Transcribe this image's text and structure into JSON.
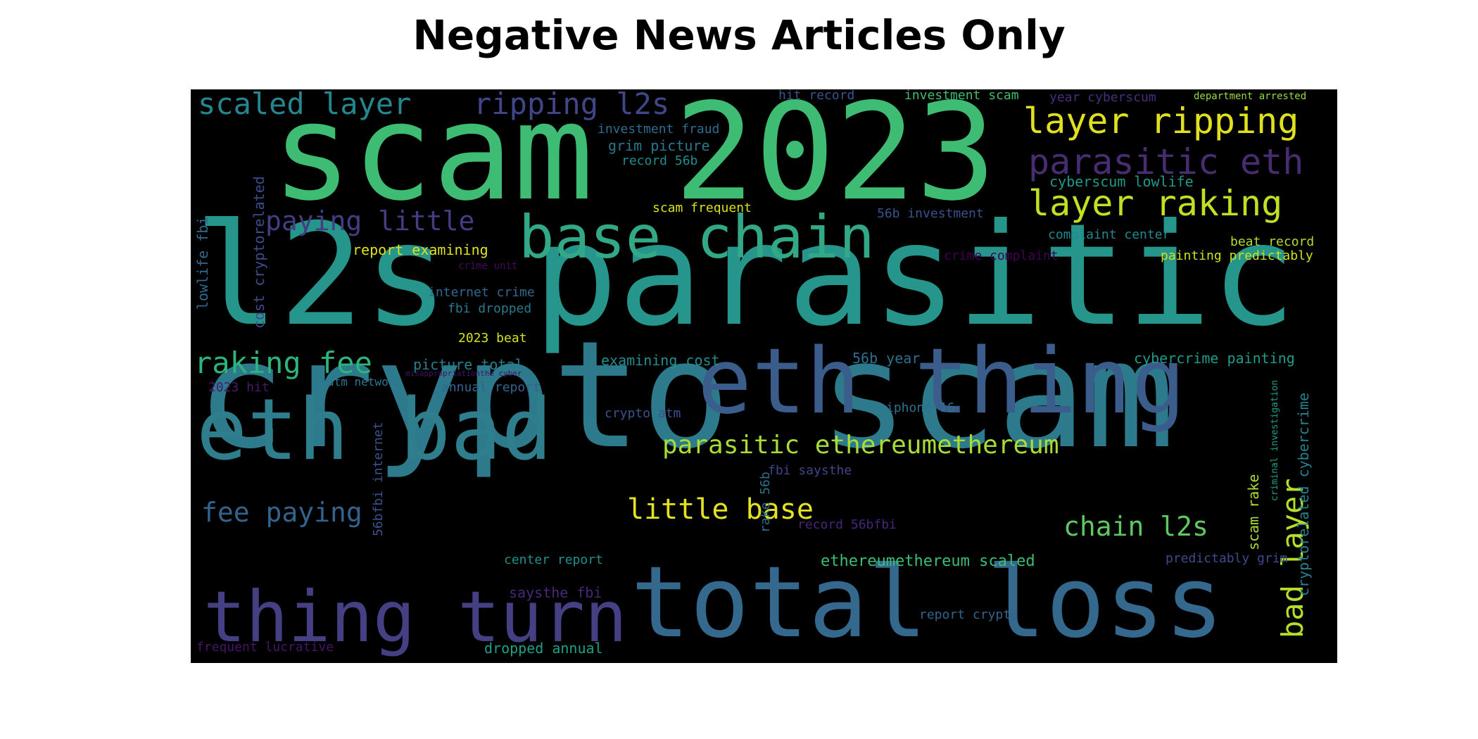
{
  "title": "Negative News Articles Only",
  "words": [
    {
      "text": "crypto scam",
      "color": "#2d7a8c"
    },
    {
      "text": "l2s parasitic",
      "color": "#26958b"
    },
    {
      "text": "scam 2023",
      "color": "#3fbc74"
    },
    {
      "text": "eth thing",
      "color": "#3a5d8c"
    },
    {
      "text": "total loss",
      "color": "#35688d"
    },
    {
      "text": "eth bad",
      "color": "#2e7e8e"
    },
    {
      "text": "thing turn",
      "color": "#453f84"
    },
    {
      "text": "base chain",
      "color": "#32a887"
    },
    {
      "text": "layer ripping",
      "color": "#e0e021"
    },
    {
      "text": "parasitic eth",
      "color": "#482c72"
    },
    {
      "text": "layer raking",
      "color": "#c2df23"
    },
    {
      "text": "bad layer",
      "color": "#b5de2b"
    },
    {
      "text": "scaled layer",
      "color": "#24868e"
    },
    {
      "text": "ripping l2s",
      "color": "#404688"
    },
    {
      "text": "paying little",
      "color": "#433d84"
    },
    {
      "text": "raking fee",
      "color": "#2db37c"
    },
    {
      "text": "parasitic ethereumethereum",
      "color": "#a8db34"
    },
    {
      "text": "little base",
      "color": "#e3e31f"
    },
    {
      "text": "fee paying",
      "color": "#33628d"
    },
    {
      "text": "chain l2s",
      "color": "#5ec862"
    },
    {
      "text": "scam frequent",
      "color": "#d5e21a"
    },
    {
      "text": "grim picture",
      "color": "#2a788e"
    },
    {
      "text": "record 56b",
      "color": "#218e8d"
    },
    {
      "text": "investment fraud",
      "color": "#2f6c8e"
    },
    {
      "text": "hit record",
      "color": "#3a538b"
    },
    {
      "text": "investment scam",
      "color": "#40bd72"
    },
    {
      "text": "year cyberscum",
      "color": "#472f7d"
    },
    {
      "text": "department arrested",
      "color": "#95d840"
    },
    {
      "text": "cyberscum lowlife",
      "color": "#1f9a8a"
    },
    {
      "text": "56b investment",
      "color": "#3b518b"
    },
    {
      "text": "complaint center",
      "color": "#23898e"
    },
    {
      "text": "beat record",
      "color": "#b2dd2c"
    },
    {
      "text": "crime complaint",
      "color": "#440154"
    },
    {
      "text": "painting predictably",
      "color": "#cde11d"
    },
    {
      "text": "report examining",
      "color": "#dde318"
    },
    {
      "text": "crime unit",
      "color": "#46075a"
    },
    {
      "text": "internet crime",
      "color": "#31678e"
    },
    {
      "text": "fbi dropped",
      "color": "#29798e"
    },
    {
      "text": "2023 beat",
      "color": "#d8e219"
    },
    {
      "text": "examining cost",
      "color": "#218f8d"
    },
    {
      "text": "56b year",
      "color": "#2e6f8e"
    },
    {
      "text": "cybercrime painting",
      "color": "#1e9b8a"
    },
    {
      "text": "picture total",
      "color": "#277f8e"
    },
    {
      "text": "misappropriationthe cyber",
      "color": "#471063"
    },
    {
      "text": "atm network",
      "color": "#2a788e"
    },
    {
      "text": "annual report",
      "color": "#32648e"
    },
    {
      "text": "2023 hit",
      "color": "#481a6c"
    },
    {
      "text": "crypto atm",
      "color": "#3b528b"
    },
    {
      "text": "iphone 16",
      "color": "#2c718e"
    },
    {
      "text": "fbi saysthe",
      "color": "#414487"
    },
    {
      "text": "record 56bfbi",
      "color": "#482576"
    },
    {
      "text": "center report",
      "color": "#21908d"
    },
    {
      "text": "ethereumethereum scaled",
      "color": "#3dbc74"
    },
    {
      "text": "predictably grim",
      "color": "#3e4a89"
    },
    {
      "text": "saysthe fbi",
      "color": "#482878"
    },
    {
      "text": "report crypto",
      "color": "#33638d"
    },
    {
      "text": "frequent lucrative",
      "color": "#481467"
    },
    {
      "text": "dropped annual",
      "color": "#1fa088"
    },
    {
      "text": "lowlife fbi",
      "color": "#31688e"
    },
    {
      "text": "cost cryptorelated",
      "color": "#3e4c8a"
    },
    {
      "text": "56bfbi internet",
      "color": "#3b528b"
    },
    {
      "text": "rake 56b",
      "color": "#2c718e"
    },
    {
      "text": "scam rake",
      "color": "#aadc32"
    },
    {
      "text": "criminal investigation",
      "color": "#1f9e89"
    },
    {
      "text": "cryptorelated cybercrime",
      "color": "#26828e"
    }
  ]
}
